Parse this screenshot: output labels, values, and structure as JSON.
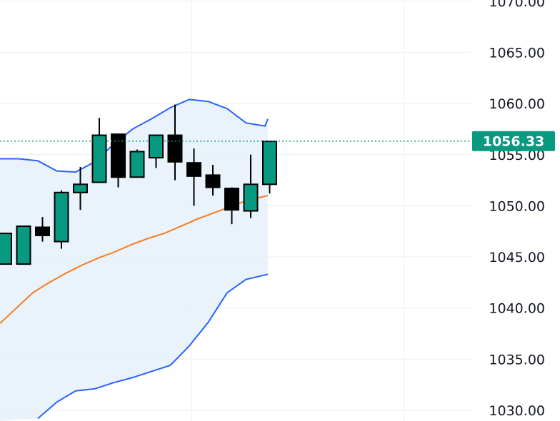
{
  "chart_data": {
    "type": "candlestick",
    "y_axis": {
      "ylim": [
        1029.7,
        1071.0
      ],
      "ticks": [
        "1030.00",
        "1035.00",
        "1040.00",
        "1045.00",
        "1050.00",
        "1055.00",
        "1060.00",
        "1065.00",
        "1070.00"
      ],
      "tick_values": [
        1030,
        1035,
        1040,
        1045,
        1050,
        1055,
        1060,
        1065,
        1070
      ],
      "position": "right"
    },
    "grid": true,
    "current_price": {
      "label": "1056.33",
      "value": 1056.33,
      "color": "#089981"
    },
    "colors": {
      "up_fill": "#089981",
      "down_fill": "#000000",
      "wick": "#000000",
      "band_upper": "#2962ff",
      "band_lower": "#2962ff",
      "basis": "#f57c1f",
      "band_fill": "#e3effa"
    },
    "candles": [
      {
        "open": 1044.3,
        "high": 1047.3,
        "low": 1044.3,
        "close": 1047.3
      },
      {
        "open": 1044.3,
        "high": 1048.0,
        "low": 1044.3,
        "close": 1048.0
      },
      {
        "open": 1047.9,
        "high": 1048.9,
        "low": 1046.5,
        "close": 1047.1
      },
      {
        "open": 1046.5,
        "high": 1051.5,
        "low": 1045.8,
        "close": 1051.3
      },
      {
        "open": 1051.3,
        "high": 1053.8,
        "low": 1049.6,
        "close": 1052.1
      },
      {
        "open": 1052.3,
        "high": 1058.6,
        "low": 1052.3,
        "close": 1056.9
      },
      {
        "open": 1057.0,
        "high": 1057.0,
        "low": 1051.8,
        "close": 1052.8
      },
      {
        "open": 1052.8,
        "high": 1055.5,
        "low": 1052.8,
        "close": 1055.3
      },
      {
        "open": 1054.7,
        "high": 1056.9,
        "low": 1053.7,
        "close": 1056.9
      },
      {
        "open": 1056.9,
        "high": 1059.9,
        "low": 1052.5,
        "close": 1054.3
      },
      {
        "open": 1054.2,
        "high": 1055.6,
        "low": 1050.0,
        "close": 1052.9
      },
      {
        "open": 1053.0,
        "high": 1054.0,
        "low": 1051.0,
        "close": 1051.8
      },
      {
        "open": 1051.7,
        "high": 1051.8,
        "low": 1048.2,
        "close": 1049.6
      },
      {
        "open": 1049.5,
        "high": 1055.0,
        "low": 1048.8,
        "close": 1052.1
      },
      {
        "open": 1052.1,
        "high": 1056.3,
        "low": 1051.2,
        "close": 1056.3
      }
    ],
    "bollinger_upper": [
      1054.6,
      1054.6,
      1054.4,
      1053.4,
      1053.3,
      1054.3,
      1056.0,
      1057.5,
      1058.5,
      1059.6,
      1060.4,
      1060.2,
      1059.5,
      1058.1,
      1057.8,
      1058.5
    ],
    "basis": [
      1038.5,
      1040.0,
      1041.5,
      1042.5,
      1043.4,
      1044.2,
      1044.9,
      1045.5,
      1046.2,
      1046.8,
      1047.3,
      1048.0,
      1048.7,
      1049.3,
      1049.9,
      1050.5,
      1051.0
    ],
    "bollinger_lower": [
      1029.2,
      1030.8,
      1031.9,
      1032.1,
      1032.7,
      1033.2,
      1033.8,
      1034.4,
      1036.3,
      1038.6,
      1041.5,
      1042.8,
      1043.3
    ]
  }
}
